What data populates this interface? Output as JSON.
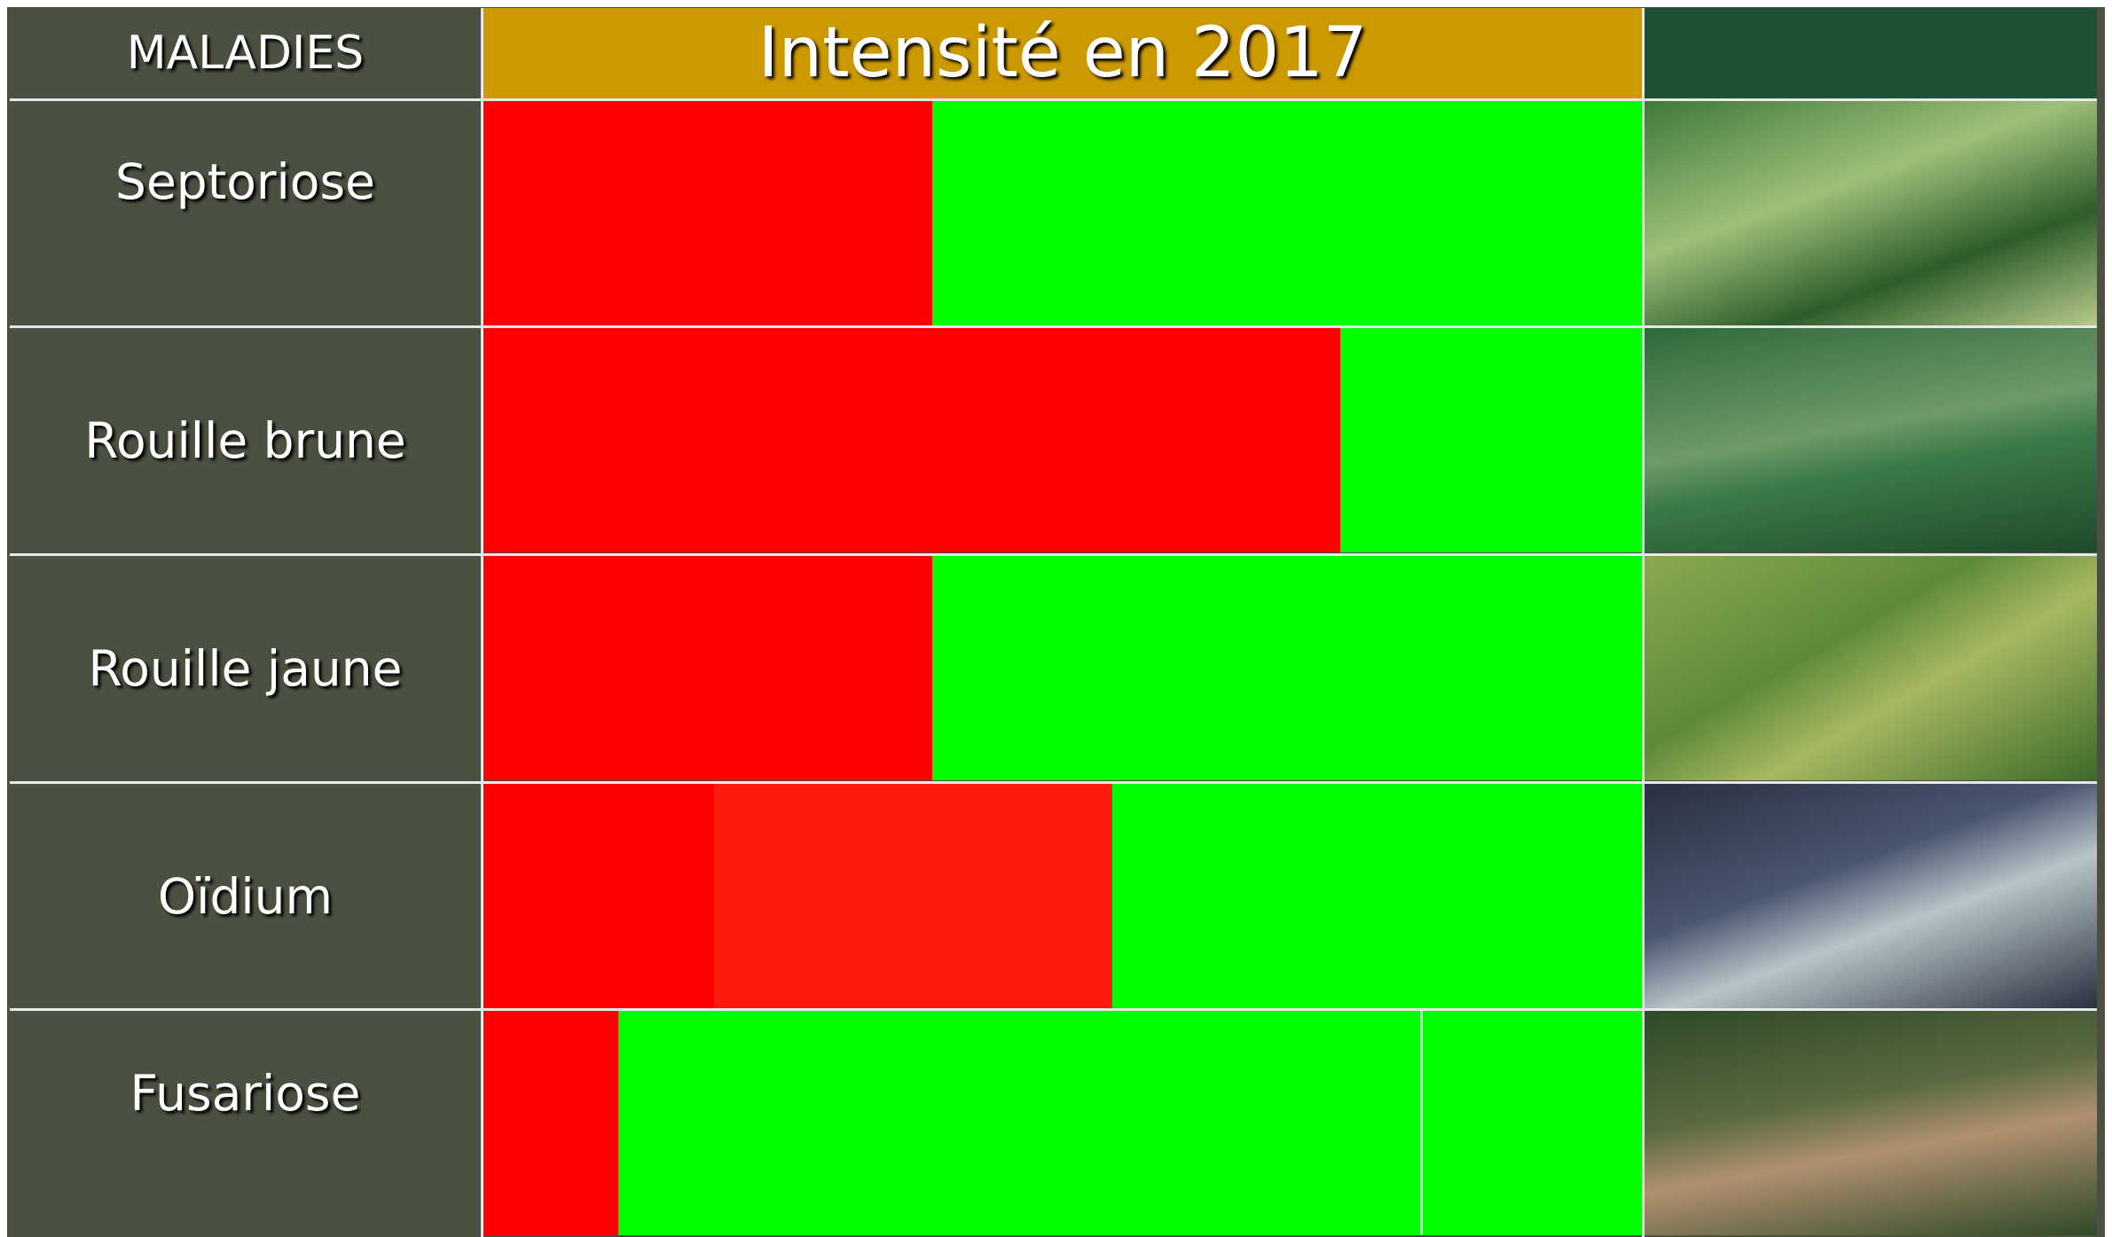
{
  "header": {
    "first_column": "MALADIES",
    "title": "Intensité en 2017"
  },
  "rows": [
    {
      "label": "Septoriose"
    },
    {
      "label": "Rouille brune"
    },
    {
      "label": "Rouille jaune"
    },
    {
      "label": "Oïdium"
    },
    {
      "label": "Fusariose"
    }
  ]
}
